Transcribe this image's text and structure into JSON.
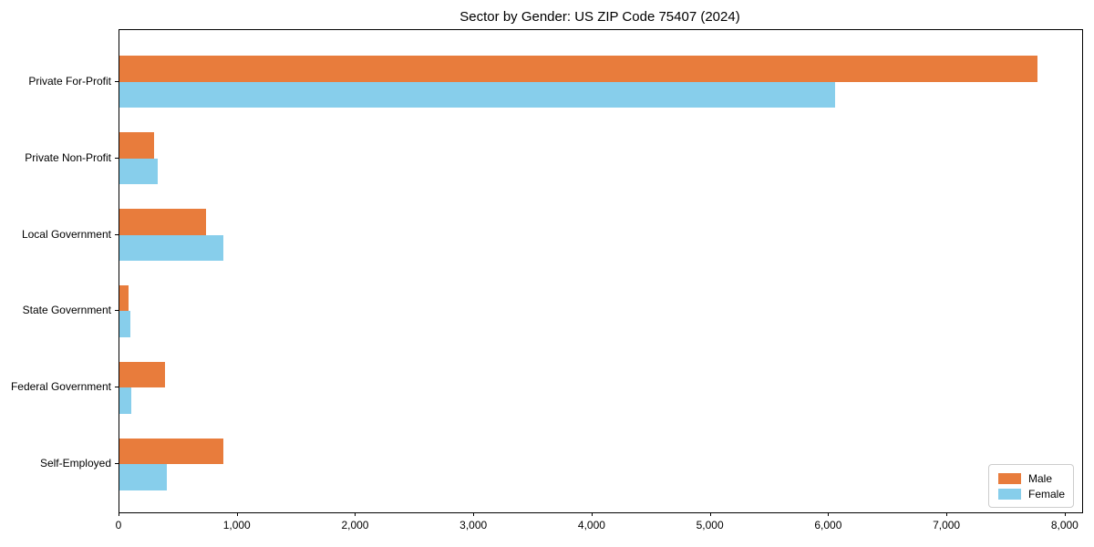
{
  "chart_data": {
    "type": "bar",
    "orientation": "horizontal",
    "title": "Sector by Gender: US ZIP Code 75407 (2024)",
    "categories": [
      "Private For-Profit",
      "Private Non-Profit",
      "Local Government",
      "State Government",
      "Federal Government",
      "Self-Employed"
    ],
    "series": [
      {
        "name": "Male",
        "color": "#E87C3C",
        "values": [
          7760,
          290,
          730,
          80,
          385,
          880
        ]
      },
      {
        "name": "Female",
        "color": "#87CEEB",
        "values": [
          6050,
          325,
          875,
          90,
          100,
          400
        ]
      }
    ],
    "xlabel": "",
    "ylabel": "",
    "xlim": [
      0,
      8140
    ],
    "x_ticks": [
      0,
      1000,
      2000,
      3000,
      4000,
      5000,
      6000,
      7000,
      8000
    ],
    "x_tick_labels": [
      "0",
      "1,000",
      "2,000",
      "3,000",
      "4,000",
      "5,000",
      "6,000",
      "7,000",
      "8,000"
    ],
    "legend_position": "lower right",
    "grid": false,
    "spine_color": "#000000",
    "background_color": "#ffffff"
  }
}
